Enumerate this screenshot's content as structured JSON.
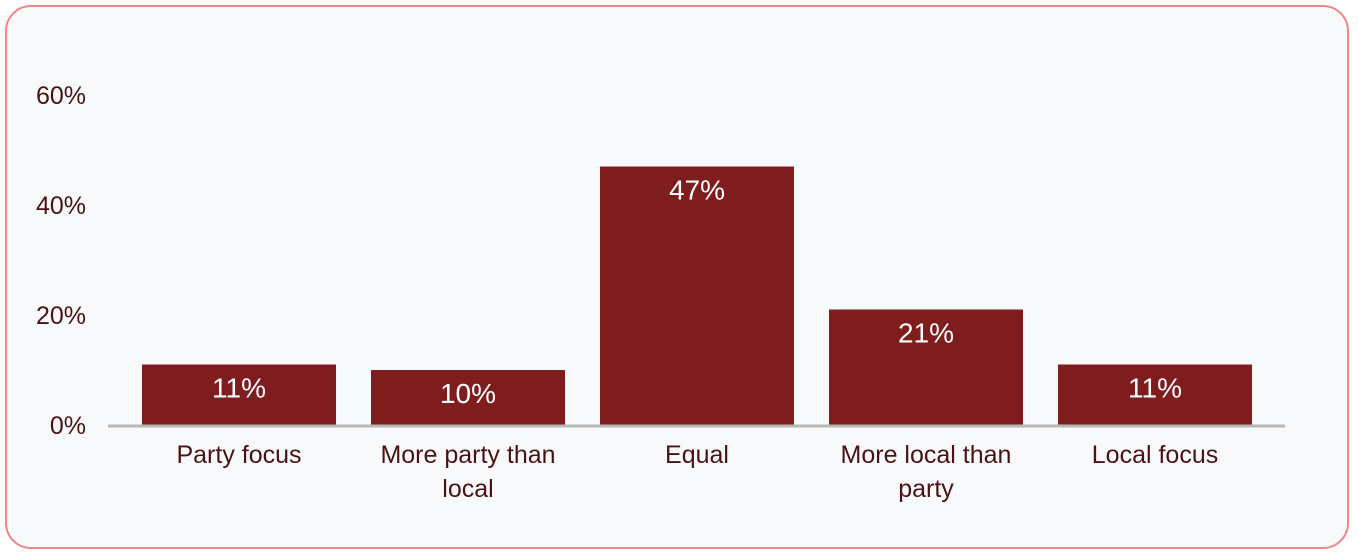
{
  "chart_data": {
    "type": "bar",
    "categories": [
      [
        "Party focus"
      ],
      [
        "More party than",
        "local"
      ],
      [
        "Equal"
      ],
      [
        "More local than",
        "party"
      ],
      [
        "Local focus"
      ]
    ],
    "values": [
      11,
      10,
      47,
      21,
      11
    ],
    "data_labels": [
      "11%",
      "10%",
      "47%",
      "21%",
      "11%"
    ],
    "yticks": [
      "0%",
      "20%",
      "40%",
      "60%"
    ],
    "ytick_values": [
      0,
      20,
      40,
      60
    ],
    "ylim": [
      0,
      60
    ],
    "grid": false,
    "bar_color": "#7f1c1d",
    "text_color": "#4a1213",
    "axis_color": "#b8b8b8",
    "border_color": "#f28585",
    "background_color": "#f8f9fb"
  }
}
